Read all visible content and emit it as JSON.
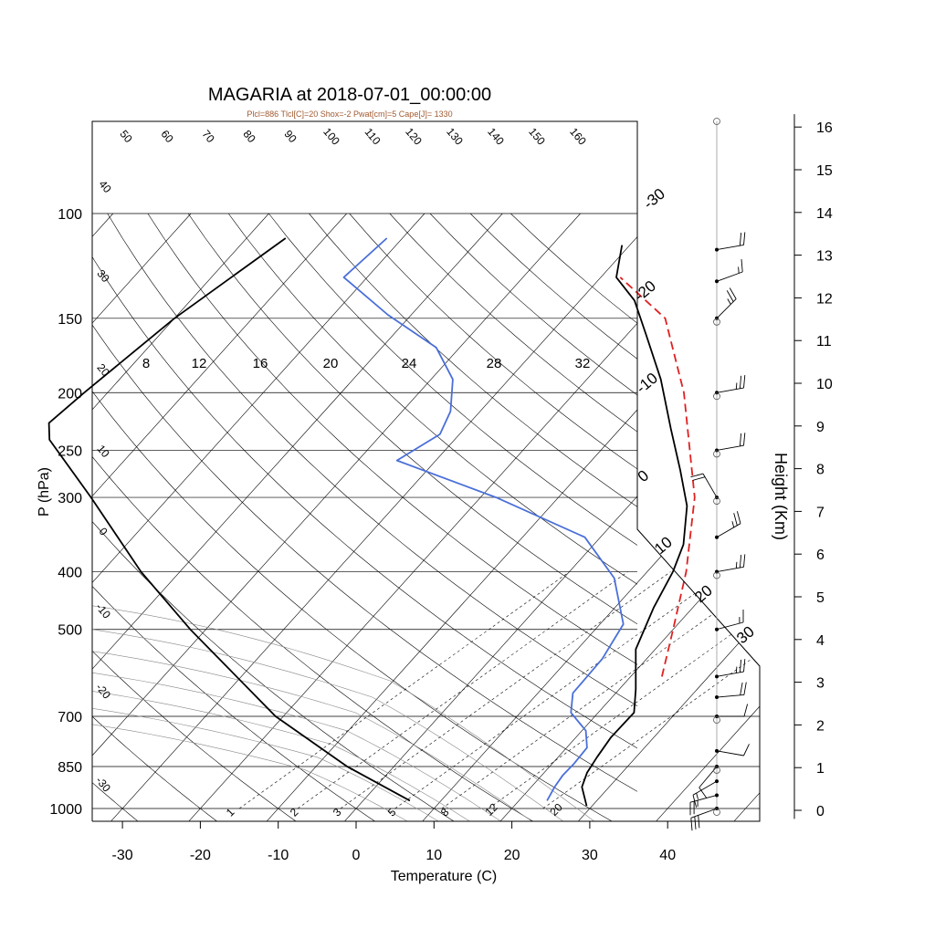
{
  "chart_data": {
    "type": "line",
    "title": "MAGARIA at 2018-07-01_00:00:00",
    "subtitle": "Plcl=886 Tlcl[C]=20 Shox=-2 Pwat[cm]=5 Cape[J]= 1330",
    "xlabel": "Temperature (C)",
    "ylabel": "P (hPa)",
    "y2label": "Height (Km)",
    "xlim": [
      -34,
      50
    ],
    "ylim": [
      1050,
      100
    ],
    "x_ticks": [
      "-30",
      "-20",
      "-10",
      "0",
      "10",
      "20",
      "30",
      "40"
    ],
    "x_tick_values": [
      -30,
      -20,
      -10,
      0,
      10,
      20,
      30,
      40
    ],
    "p_ticks": [
      "100",
      "150",
      "200",
      "250",
      "300",
      "400",
      "500",
      "700",
      "850",
      "1000"
    ],
    "p_tick_values": [
      100,
      150,
      200,
      250,
      300,
      400,
      500,
      700,
      850,
      1000
    ],
    "height_ticks": [
      "0",
      "1",
      "2",
      "3",
      "4",
      "5",
      "6",
      "7",
      "8",
      "9",
      "10",
      "11",
      "12",
      "13",
      "14",
      "15",
      "16"
    ],
    "height_tick_values": [
      0,
      1,
      2,
      3,
      4,
      5,
      6,
      7,
      8,
      9,
      10,
      11,
      12,
      13,
      14,
      15,
      16
    ],
    "isotherm_labels": [
      "-30",
      "-20",
      "-10",
      "0",
      "10",
      "20",
      "30"
    ],
    "isotherm_values": [
      -30,
      -20,
      -10,
      0,
      10,
      20,
      30
    ],
    "dry_adiabat_labels": [
      "-30",
      "-20",
      "-10",
      "0",
      "10",
      "20",
      "30",
      "40",
      "50",
      "60",
      "70",
      "80",
      "90",
      "100",
      "110",
      "120",
      "130",
      "140",
      "150",
      "160"
    ],
    "moist_adiabat_labels": [
      "8",
      "12",
      "16",
      "20",
      "24",
      "28",
      "32"
    ],
    "mixing_ratio_labels": [
      "1",
      "2",
      "3",
      "5",
      "8",
      "12",
      "20"
    ],
    "series": [
      {
        "name": "",
        "color": "#000000",
        "points": [
          {
            "p": 990,
            "t": 29.3
          },
          {
            "p": 920,
            "t": 26.5
          },
          {
            "p": 870,
            "t": 25.5
          },
          {
            "p": 820,
            "t": 25.0
          },
          {
            "p": 760,
            "t": 24.5
          },
          {
            "p": 690,
            "t": 24.6
          },
          {
            "p": 630,
            "t": 22.1
          },
          {
            "p": 540,
            "t": 17.5
          },
          {
            "p": 460,
            "t": 15.0
          },
          {
            "p": 400,
            "t": 13.3
          },
          {
            "p": 360,
            "t": 11.5
          },
          {
            "p": 310,
            "t": 7.5
          },
          {
            "p": 270,
            "t": 2.5
          },
          {
            "p": 230,
            "t": -3.5
          },
          {
            "p": 190,
            "t": -10.5
          },
          {
            "p": 160,
            "t": -17.5
          },
          {
            "p": 140,
            "t": -23.0
          },
          {
            "p": 128,
            "t": -28.0
          },
          {
            "p": 113,
            "t": -31.0
          }
        ]
      },
      {
        "name": "",
        "color": "#4a6fd8",
        "points": [
          {
            "p": 970,
            "t": 23.6
          },
          {
            "p": 920,
            "t": 23.0
          },
          {
            "p": 880,
            "t": 22.7
          },
          {
            "p": 840,
            "t": 22.8
          },
          {
            "p": 790,
            "t": 22.6
          },
          {
            "p": 740,
            "t": 20.5
          },
          {
            "p": 690,
            "t": 16.5
          },
          {
            "p": 640,
            "t": 14.5
          },
          {
            "p": 560,
            "t": 14.3
          },
          {
            "p": 490,
            "t": 13.0
          },
          {
            "p": 410,
            "t": 6.5
          },
          {
            "p": 350,
            "t": -2.0
          },
          {
            "p": 300,
            "t": -18.0
          },
          {
            "p": 260,
            "t": -35.0
          },
          {
            "p": 235,
            "t": -32.5
          },
          {
            "p": 215,
            "t": -33.8
          },
          {
            "p": 190,
            "t": -37.2
          },
          {
            "p": 168,
            "t": -43.0
          },
          {
            "p": 148,
            "t": -53.0
          },
          {
            "p": 128,
            "t": -63.0
          },
          {
            "p": 110,
            "t": -62.0
          }
        ]
      },
      {
        "name": "",
        "color": "#000000",
        "points": [
          {
            "p": 970,
            "t": 6.0
          },
          {
            "p": 850,
            "t": -6.0
          },
          {
            "p": 700,
            "t": -21.0
          },
          {
            "p": 500,
            "t": -42.0
          },
          {
            "p": 400,
            "t": -55.0
          },
          {
            "p": 300,
            "t": -70.0
          },
          {
            "p": 240,
            "t": -82.0
          },
          {
            "p": 225,
            "t": -84.0
          },
          {
            "p": 200,
            "t": -83.0
          },
          {
            "p": 150,
            "t": -80.0
          },
          {
            "p": 110,
            "t": -75.0
          }
        ]
      },
      {
        "name": "",
        "color": "#e02020",
        "dashed": true,
        "points": [
          {
            "p": 600,
            "t": 24.0
          },
          {
            "p": 500,
            "t": 20.0
          },
          {
            "p": 400,
            "t": 15.0
          },
          {
            "p": 300,
            "t": 7.5
          },
          {
            "p": 200,
            "t": -6.0
          },
          {
            "p": 150,
            "t": -17.0
          },
          {
            "p": 128,
            "t": -27.5
          }
        ]
      }
    ],
    "wind_barbs": [
      {
        "p": 1000,
        "speed_kt": 30,
        "dir_deg": 250
      },
      {
        "p": 950,
        "speed_kt": 25,
        "dir_deg": 255
      },
      {
        "p": 900,
        "speed_kt": 15,
        "dir_deg": 240
      },
      {
        "p": 850,
        "speed_kt": 10,
        "dir_deg": 220
      },
      {
        "p": 800,
        "speed_kt": 10,
        "dir_deg": 100
      },
      {
        "p": 700,
        "speed_kt": 10,
        "dir_deg": 90
      },
      {
        "p": 650,
        "speed_kt": 20,
        "dir_deg": 85
      },
      {
        "p": 600,
        "speed_kt": 25,
        "dir_deg": 80
      },
      {
        "p": 500,
        "speed_kt": 15,
        "dir_deg": 75
      },
      {
        "p": 400,
        "speed_kt": 25,
        "dir_deg": 80
      },
      {
        "p": 350,
        "speed_kt": 25,
        "dir_deg": 60
      },
      {
        "p": 300,
        "speed_kt": 20,
        "dir_deg": 330
      },
      {
        "p": 250,
        "speed_kt": 20,
        "dir_deg": 80
      },
      {
        "p": 200,
        "speed_kt": 25,
        "dir_deg": 80
      },
      {
        "p": 150,
        "speed_kt": 25,
        "dir_deg": 45
      },
      {
        "p": 130,
        "speed_kt": 15,
        "dir_deg": 70
      },
      {
        "p": 115,
        "speed_kt": 20,
        "dir_deg": 80
      }
    ]
  }
}
